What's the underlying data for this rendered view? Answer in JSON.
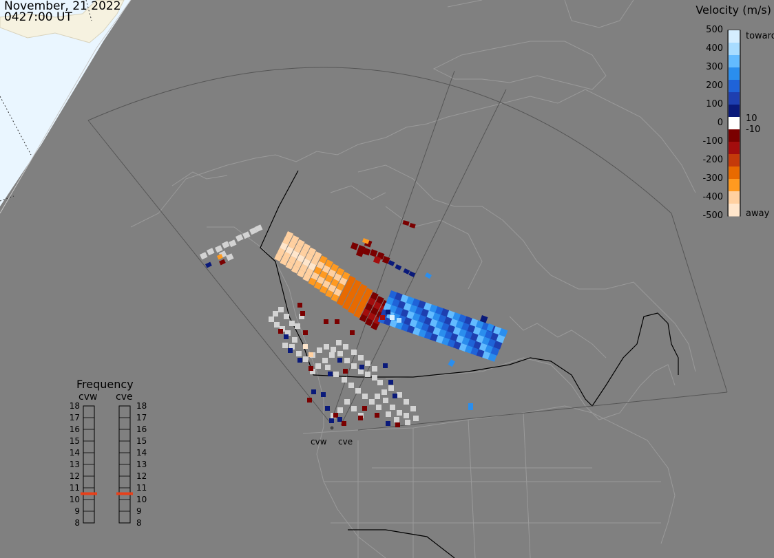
{
  "header": {
    "date": "November, 21 2022",
    "time": "0427:00 UT"
  },
  "velocity_legend": {
    "title": "Velocity (m/s)",
    "ticks": [
      "500",
      "400",
      "300",
      "200",
      "100",
      "0",
      "-100",
      "-200",
      "-300",
      "-400",
      "-500"
    ],
    "inner_ticks": [
      "10",
      "-10"
    ],
    "toward_label": "toward",
    "away_label": "away",
    "colors": [
      "#d5eeff",
      "#a8dcff",
      "#63bbff",
      "#2a8eee",
      "#1f63d8",
      "#1e3fb0",
      "#0a1a7a",
      "#ffffff",
      "#7a0000",
      "#a30d0d",
      "#c43a0a",
      "#e86a00",
      "#ff9a20",
      "#ffd0a0",
      "#ffe6cc"
    ]
  },
  "frequency_panel": {
    "title": "Frequency",
    "radars": [
      {
        "name": "cvw",
        "value_mhz": 10.5
      },
      {
        "name": "cve",
        "value_mhz": 10.5
      }
    ],
    "scale": [
      "18",
      "17",
      "16",
      "15",
      "14",
      "13",
      "12",
      "11",
      "10",
      "9",
      "8"
    ],
    "marker_color": "#e8401a"
  },
  "radar_sites": [
    {
      "label": "cvw"
    },
    {
      "label": "cve"
    }
  ],
  "colors": {
    "background": "#808080",
    "land_outline": "#9a9a9a",
    "grid": "#5e5e5e",
    "border": "#000000",
    "low_velocity_gray": "#d3d3d3",
    "daylight": "#eaf6ff"
  }
}
